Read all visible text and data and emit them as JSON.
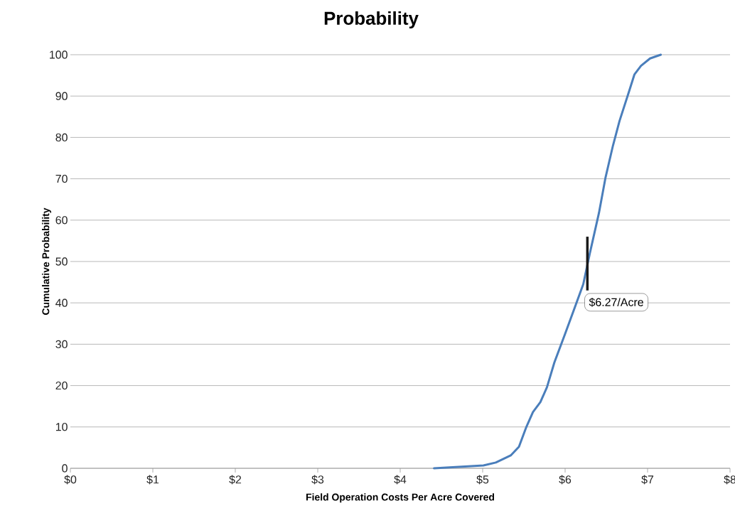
{
  "chart_data": {
    "type": "line",
    "title": "Probability",
    "xlabel": "Field Operation Costs Per Acre Covered",
    "ylabel": "Cumulative Probability",
    "series": [
      {
        "color": "#4a7ebb",
        "x": [
          4.41,
          5.01,
          5.16,
          5.34,
          5.44,
          5.53,
          5.61,
          5.7,
          5.78,
          5.87,
          6.0,
          6.11,
          6.22,
          6.3,
          6.41,
          6.49,
          6.58,
          6.66,
          6.78,
          6.84,
          6.92,
          7.03,
          7.16
        ],
        "values": [
          0,
          0.7,
          1.4,
          3.1,
          5.2,
          10,
          13.6,
          16,
          19.6,
          25.6,
          32.5,
          38.5,
          44.5,
          52,
          61.7,
          70.3,
          78,
          84,
          91.4,
          95.2,
          97.3,
          99.1,
          100
        ]
      }
    ],
    "xlim": [
      0,
      8
    ],
    "xticks": [
      {
        "value": 0,
        "label": "$0"
      },
      {
        "value": 1,
        "label": "$1"
      },
      {
        "value": 2,
        "label": "$2"
      },
      {
        "value": 3,
        "label": "$3"
      },
      {
        "value": 4,
        "label": "$4"
      },
      {
        "value": 5,
        "label": "$5"
      },
      {
        "value": 6,
        "label": "$6"
      },
      {
        "value": 7,
        "label": "$7"
      },
      {
        "value": 8,
        "label": "$8"
      }
    ],
    "ylim": [
      0,
      100
    ],
    "yticks": [
      0,
      10,
      20,
      30,
      40,
      50,
      60,
      70,
      80,
      90,
      100
    ],
    "grid": "y",
    "marker": "none",
    "line_style": "solid",
    "ref_lines": [
      {
        "axis": "x",
        "value": 6.27,
        "label": "$6.27/Acre",
        "color": "#1a1a1a"
      }
    ]
  }
}
